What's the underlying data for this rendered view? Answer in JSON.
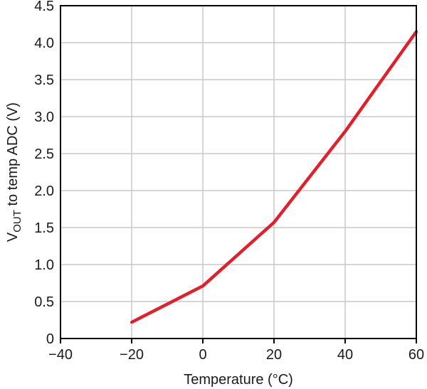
{
  "chart_data": {
    "type": "line",
    "xlabel": "Temperature (°C)",
    "ylabel": {
      "prefix": "V",
      "subscript": "OUT",
      "suffix": " to temp ADC (V)"
    },
    "xlim": [
      -40,
      60
    ],
    "ylim": [
      0,
      4.5
    ],
    "x_ticks": [
      -40,
      -20,
      0,
      20,
      40,
      60
    ],
    "x_tick_labels": [
      "−40",
      "−20",
      "0",
      "20",
      "40",
      "60"
    ],
    "y_ticks": [
      0,
      0.5,
      1.0,
      1.5,
      2.0,
      2.5,
      3.0,
      3.5,
      4.0,
      4.5
    ],
    "y_tick_labels": [
      "0",
      "0.5",
      "1.0",
      "1.5",
      "2.0",
      "2.5",
      "3.0",
      "3.5",
      "4.0",
      "4.5"
    ],
    "grid": true,
    "series": [
      {
        "color": "#e0202c",
        "x": [
          -20,
          0,
          20,
          40,
          60
        ],
        "y": [
          0.22,
          0.71,
          1.57,
          2.8,
          4.15
        ]
      }
    ]
  }
}
